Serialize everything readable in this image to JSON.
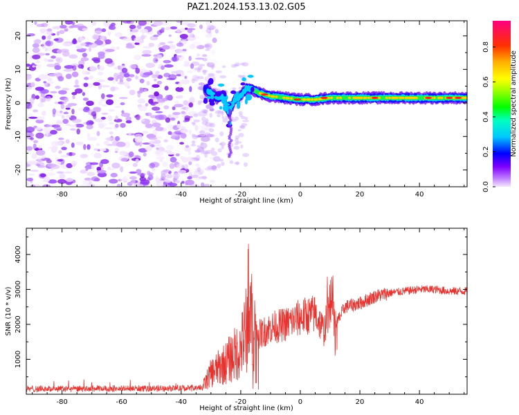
{
  "figure": {
    "title": "PAZ1.2024.153.13.02.G05"
  },
  "chart_data": [
    {
      "type": "heatmap",
      "title": "",
      "xlabel": "Height of straight line (km)",
      "ylabel": "Frequency (Hz)",
      "xlim": [
        -92,
        56
      ],
      "ylim": [
        -25,
        24.5
      ],
      "x_ticks": [
        -80,
        -60,
        -40,
        -20,
        0,
        20,
        40
      ],
      "y_ticks": [
        -20,
        -10,
        0,
        10,
        20
      ],
      "colorbar": {
        "label": "Normalized spectral amplitude",
        "range": [
          0,
          0.95
        ],
        "ticks": [
          0.0,
          0.2,
          0.4,
          0.6,
          0.8
        ]
      },
      "description_values": {
        "noise_region_x": [
          -92,
          -32
        ],
        "line_track": [
          [
            -32,
            4
          ],
          [
            -30,
            3
          ],
          [
            -28,
            1.5
          ],
          [
            -26,
            2
          ],
          [
            -24,
            -3
          ],
          [
            -22,
            1
          ],
          [
            -20,
            2
          ],
          [
            -18,
            4.5
          ],
          [
            -16,
            4
          ],
          [
            -14,
            3
          ],
          [
            -12,
            2.5
          ],
          [
            -10,
            2
          ],
          [
            -5,
            1.5
          ],
          [
            0,
            1
          ],
          [
            5,
            1
          ],
          [
            10,
            1.5
          ],
          [
            20,
            1.5
          ],
          [
            30,
            1.5
          ],
          [
            40,
            1.5
          ],
          [
            55,
            1.5
          ]
        ]
      }
    },
    {
      "type": "line",
      "title": "",
      "xlabel": "Height of straight line (km)",
      "ylabel": "SNR (10 * v/v)",
      "xlim": [
        -92,
        56
      ],
      "ylim": [
        0,
        4750
      ],
      "x_ticks": [
        -80,
        -60,
        -40,
        -20,
        0,
        20,
        40
      ],
      "y_ticks": [
        1000,
        2000,
        3000,
        4000
      ],
      "series": [
        {
          "color": "#e8322e",
          "envelope_x": [
            -92,
            -60,
            -40,
            -33,
            -30,
            -25,
            -20,
            -17,
            -14,
            -10,
            -5,
            0,
            5,
            8,
            10,
            12,
            15,
            20,
            25,
            30,
            35,
            40,
            45,
            50,
            55
          ],
          "envelope_y": [
            150,
            160,
            170,
            180,
            600,
            900,
            1300,
            2200,
            1700,
            1900,
            2000,
            2200,
            2300,
            1800,
            2600,
            2000,
            2500,
            2600,
            2800,
            2900,
            2950,
            3000,
            3000,
            2950,
            2950
          ]
        }
      ]
    }
  ]
}
